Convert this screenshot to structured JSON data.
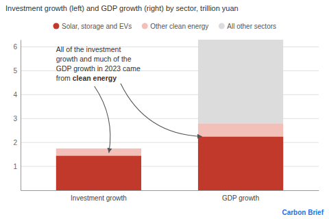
{
  "chart_data": {
    "type": "bar",
    "stacked": true,
    "title": "Investment growth (left) and GDP growth (right) by sector, trillion yuan",
    "categories": [
      "Investment growth",
      "GDP growth"
    ],
    "series": [
      {
        "name": "Solar, storage and EVs",
        "color": "#c1392b",
        "values": [
          1.45,
          2.25
        ]
      },
      {
        "name": "Other clean energy",
        "color": "#f2c0b8",
        "values": [
          0.3,
          0.55
        ]
      },
      {
        "name": "All other sectors",
        "color": "#dcdcdc",
        "values": [
          0.0,
          3.5
        ]
      }
    ],
    "ylim": [
      0,
      6.3
    ],
    "yticks": [
      1,
      2,
      3,
      4,
      5,
      6
    ],
    "grid": true,
    "legend": "top",
    "annotations": [
      "All of the investment\ngrowth and much of the\nGDP growth in 2023 came\nfrom",
      "clean energy",
      "Carbon Brief"
    ]
  }
}
